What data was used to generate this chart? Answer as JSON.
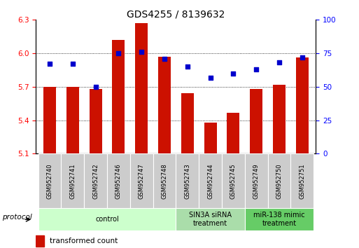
{
  "title": "GDS4255 / 8139632",
  "samples": [
    "GSM952740",
    "GSM952741",
    "GSM952742",
    "GSM952746",
    "GSM952747",
    "GSM952748",
    "GSM952743",
    "GSM952744",
    "GSM952745",
    "GSM952749",
    "GSM952750",
    "GSM952751"
  ],
  "transformed_count": [
    5.7,
    5.7,
    5.68,
    6.12,
    6.27,
    5.97,
    5.64,
    5.38,
    5.47,
    5.68,
    5.72,
    5.96
  ],
  "percentile_rank": [
    67,
    67,
    50,
    75,
    76,
    71,
    65,
    57,
    60,
    63,
    68,
    72
  ],
  "groups": [
    {
      "label": "control",
      "start": 0,
      "end": 5,
      "color": "#ccffcc"
    },
    {
      "label": "SIN3A siRNA\ntreatment",
      "start": 6,
      "end": 8,
      "color": "#aaddaa"
    },
    {
      "label": "miR-138 mimic\ntreatment",
      "start": 9,
      "end": 11,
      "color": "#66cc66"
    }
  ],
  "bar_color": "#cc1100",
  "dot_color": "#0000cc",
  "ylim_left": [
    5.1,
    6.3
  ],
  "ylim_right": [
    0,
    100
  ],
  "yticks_left": [
    5.1,
    5.4,
    5.7,
    6.0,
    6.3
  ],
  "yticks_right": [
    0,
    25,
    50,
    75,
    100
  ],
  "bar_bottom": 5.1,
  "background_color": "#ffffff"
}
